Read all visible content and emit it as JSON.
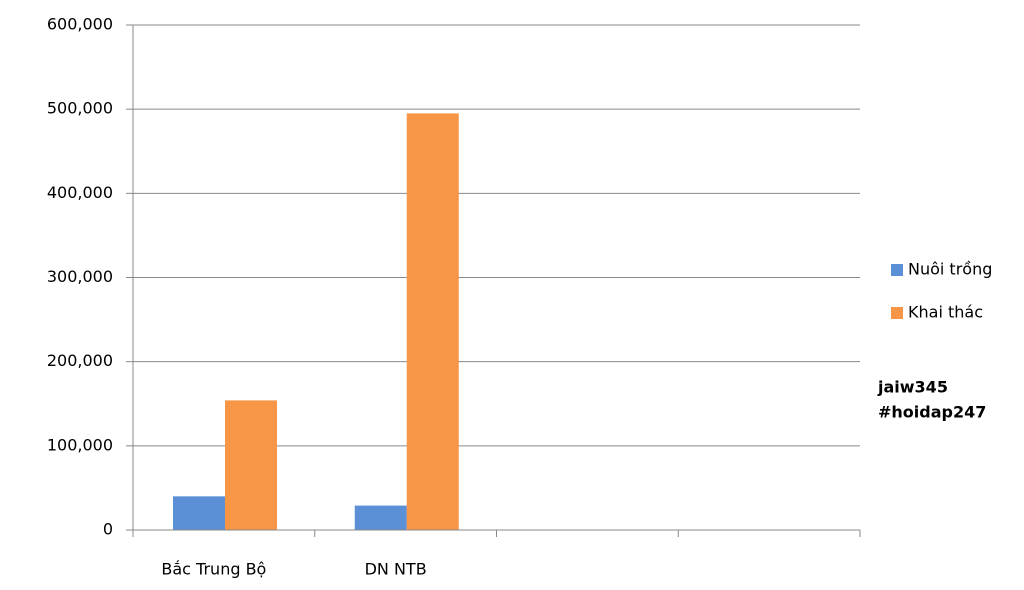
{
  "chart_data": {
    "type": "bar",
    "categories": [
      "Bắc Trung Bộ",
      "DN NTB",
      null,
      null
    ],
    "series": [
      {
        "name": "Nuôi trồng",
        "color": "#5b8fd6",
        "values": [
          40000,
          29000,
          null,
          null
        ]
      },
      {
        "name": "Khai thác",
        "color": "#f79646",
        "values": [
          154000,
          495000,
          null,
          null
        ]
      }
    ],
    "ylim": [
      0,
      600000
    ],
    "yticks": [
      0,
      {
        "value": 100000,
        "label": "100,000"
      },
      {
        "value": 200000,
        "label": "200,000"
      },
      {
        "value": 300000,
        "label": "300,000"
      },
      {
        "value": 400000,
        "label": "400,000"
      },
      {
        "value": 500000,
        "label": "500,000"
      },
      {
        "value": 600000,
        "label": "600,000"
      }
    ],
    "grid": true,
    "legend": "right",
    "annotations": [
      "jaiw345",
      "#hoidap247"
    ]
  }
}
